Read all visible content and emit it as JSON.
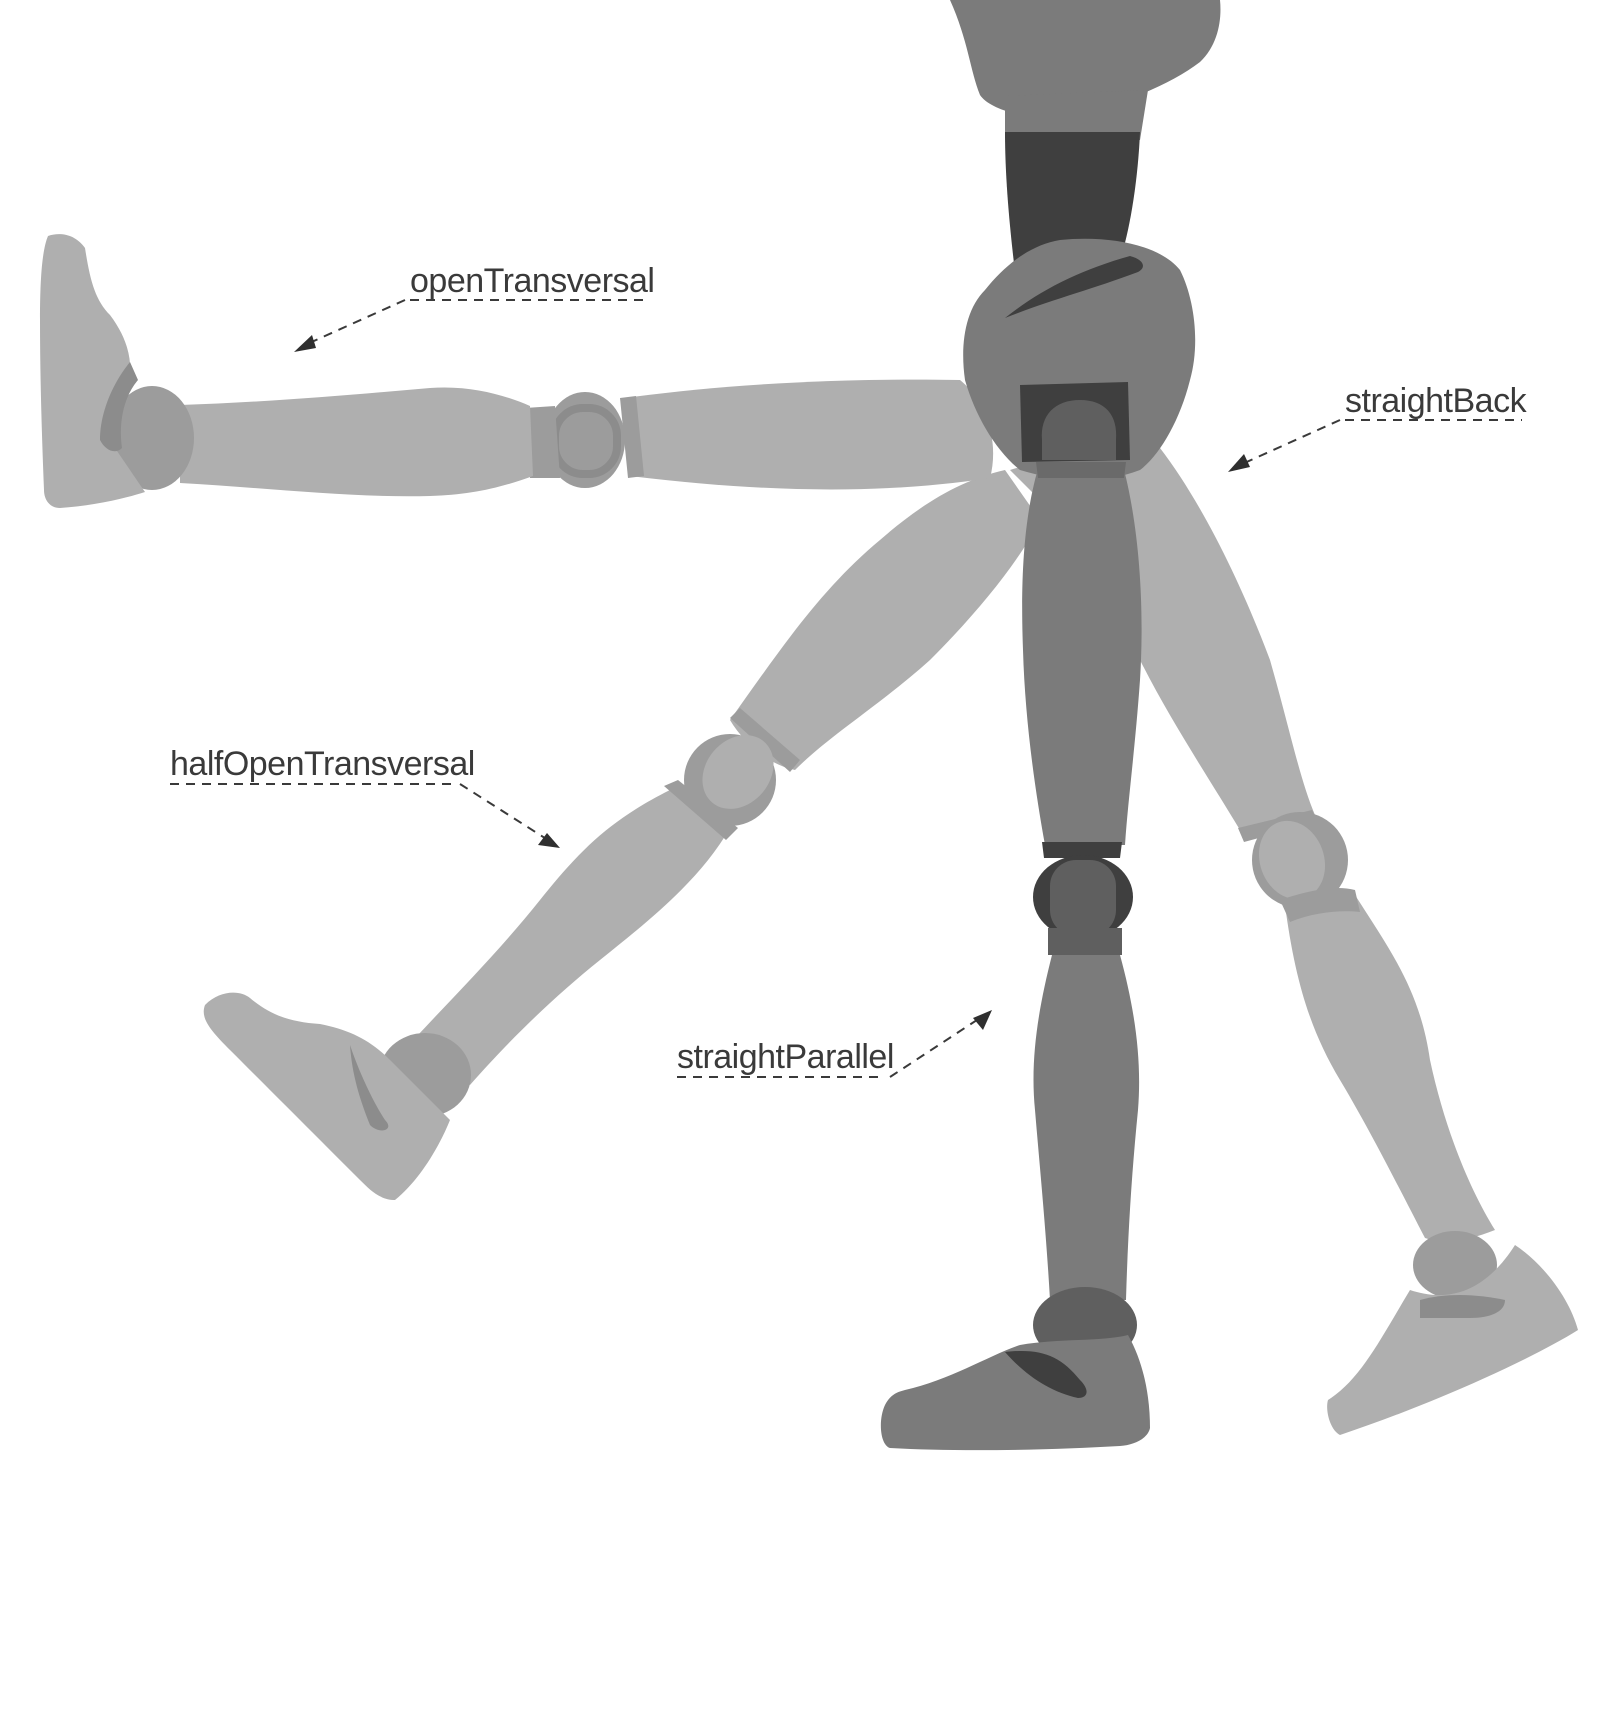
{
  "labels": {
    "open_transversal": "openTransversal",
    "straight_back": "straightBack",
    "half_open_transversal": "halfOpenTransversal",
    "straight_parallel": "straightParallel"
  },
  "colors": {
    "background": "#ffffff",
    "light_leg": "#afafaf",
    "light_joint": "#9c9c9c",
    "light_shade": "#8c8c8c",
    "mid_leg": "#7b7b7b",
    "dark_part": "#3f3f3f",
    "joint_dark": "#5f5f5f",
    "annotation": "#3a3a3a"
  }
}
